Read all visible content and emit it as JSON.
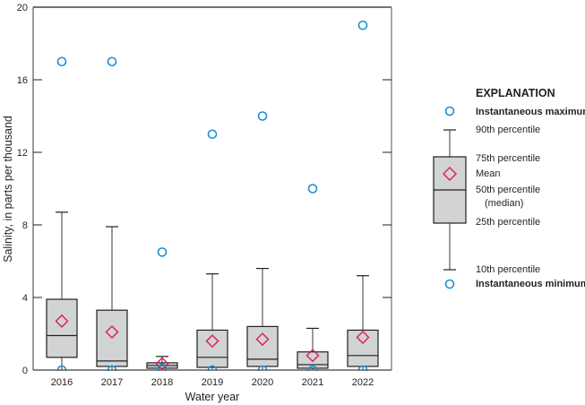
{
  "chart_data": {
    "type": "box",
    "title": "",
    "xlabel": "Water year",
    "ylabel": "Salinity, in parts per thousand",
    "ylim": [
      0,
      20
    ],
    "yticks": [
      0,
      4,
      8,
      12,
      16,
      20
    ],
    "grid": false,
    "legend_position": "right",
    "categories": [
      "2016",
      "2017",
      "2018",
      "2019",
      "2020",
      "2021",
      "2022"
    ],
    "series": [
      {
        "year": "2016",
        "inst_max": 17.0,
        "p90": 8.7,
        "p75": 3.9,
        "median": 1.9,
        "mean": 2.7,
        "p25": 0.7,
        "p10": 0.0,
        "inst_min": 0.0
      },
      {
        "year": "2017",
        "inst_max": 17.0,
        "p90": 7.9,
        "p75": 3.3,
        "median": 0.5,
        "mean": 2.1,
        "p25": 0.2,
        "p10": 0.0,
        "inst_min": 0.0
      },
      {
        "year": "2018",
        "inst_max": 6.5,
        "p90": 0.75,
        "p75": 0.4,
        "median": 0.25,
        "mean": 0.35,
        "p25": 0.1,
        "p10": 0.0,
        "inst_min": 0.1
      },
      {
        "year": "2019",
        "inst_max": 13.0,
        "p90": 5.3,
        "p75": 2.2,
        "median": 0.7,
        "mean": 1.6,
        "p25": 0.15,
        "p10": 0.0,
        "inst_min": 0.0
      },
      {
        "year": "2020",
        "inst_max": 14.0,
        "p90": 5.6,
        "p75": 2.4,
        "median": 0.6,
        "mean": 1.7,
        "p25": 0.2,
        "p10": 0.0,
        "inst_min": 0.0
      },
      {
        "year": "2021",
        "inst_max": 10.0,
        "p90": 2.3,
        "p75": 1.0,
        "median": 0.3,
        "mean": 0.8,
        "p25": 0.1,
        "p10": 0.0,
        "inst_min": 0.0
      },
      {
        "year": "2022",
        "inst_max": 19.0,
        "p90": 5.2,
        "p75": 2.2,
        "median": 0.8,
        "mean": 1.8,
        "p25": 0.2,
        "p10": 0.0,
        "inst_min": 0.0
      }
    ],
    "colors": {
      "box_fill": "#d1d3d4",
      "box_stroke": "#231f20",
      "whisker": "#58595b",
      "mean_marker": "#e0195a",
      "extreme_marker": "#1a8fd1"
    }
  },
  "legend": {
    "title": "EXPLANATION",
    "items": {
      "inst_max": "Instantaneous maximum",
      "p90": "90th percentile",
      "p75": "75th percentile",
      "mean": "Mean",
      "median": "50th percentile",
      "median_sub": "(median)",
      "p25": "25th percentile",
      "p10": "10th percentile",
      "inst_min": "Instantaneous minimum"
    }
  }
}
